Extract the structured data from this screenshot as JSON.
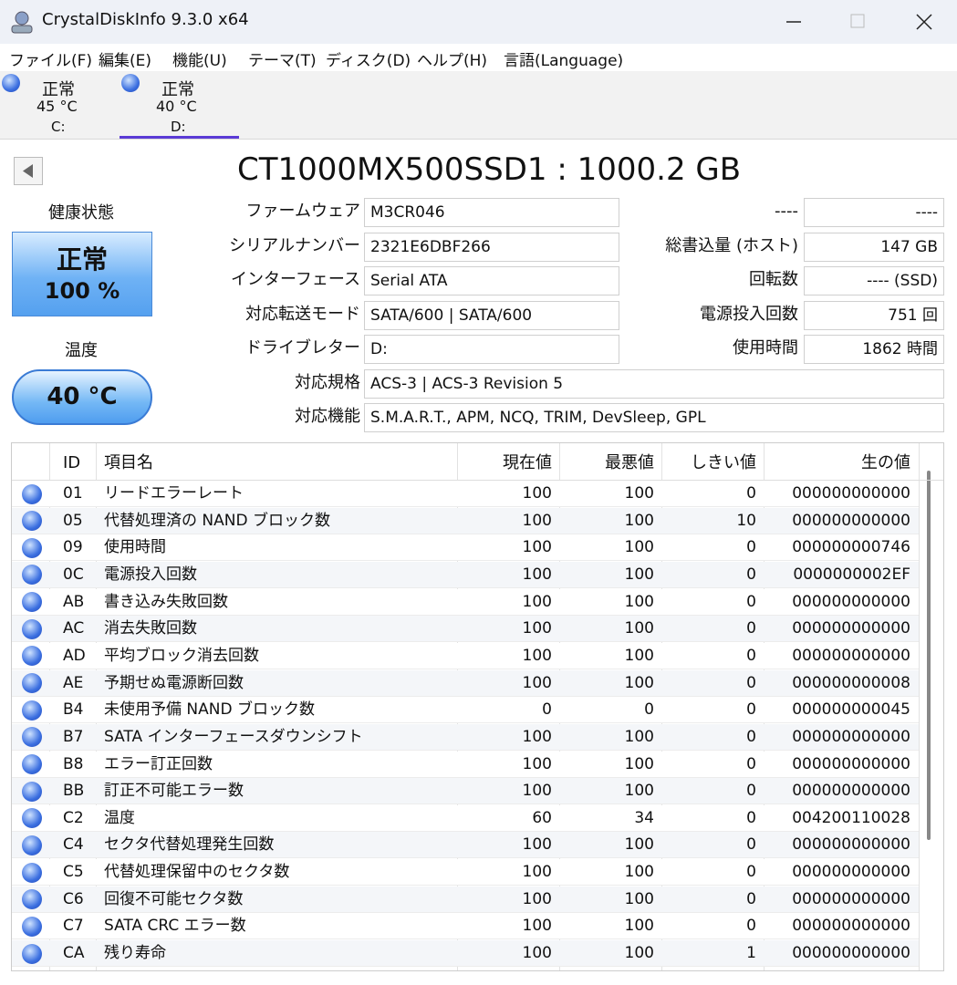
{
  "window": {
    "title": "CrystalDiskInfo 9.3.0 x64"
  },
  "menu": [
    "ファイル(F)",
    "編集(E)",
    "機能(U)",
    "テーマ(T)",
    "ディスク(D)",
    "ヘルプ(H)",
    "言語(Language)"
  ],
  "disks": [
    {
      "status": "正常",
      "temperature": "45 °C",
      "drive": "C:"
    },
    {
      "status": "正常",
      "temperature": "40 °C",
      "drive": "D:"
    }
  ],
  "model": "CT1000MX500SSD1 : 1000.2 GB",
  "health": {
    "label": "健康状態",
    "status": "正常",
    "percent": "100 %"
  },
  "temperature": {
    "label": "温度",
    "value": "40 °C"
  },
  "info_left": [
    {
      "label": "ファームウェア",
      "value": "M3CR046"
    },
    {
      "label": "シリアルナンバー",
      "value": "2321E6DBF266"
    },
    {
      "label": "インターフェース",
      "value": "Serial ATA"
    },
    {
      "label": "対応転送モード",
      "value": "SATA/600 | SATA/600"
    },
    {
      "label": "ドライブレター",
      "value": "D:"
    }
  ],
  "info_right": [
    {
      "label": "----",
      "value": "----"
    },
    {
      "label": "総書込量 (ホスト)",
      "value": "147 GB"
    },
    {
      "label": "回転数",
      "value": "---- (SSD)"
    },
    {
      "label": "電源投入回数",
      "value": "751 回"
    },
    {
      "label": "使用時間",
      "value": "1862 時間"
    }
  ],
  "info_wide": [
    {
      "label": "対応規格",
      "value": "ACS-3 | ACS-3 Revision 5"
    },
    {
      "label": "対応機能",
      "value": "S.M.A.R.T., APM, NCQ, TRIM, DevSleep, GPL"
    }
  ],
  "smart": {
    "columns": [
      "ID",
      "項目名",
      "現在値",
      "最悪値",
      "しきい値",
      "生の値"
    ],
    "rows": [
      [
        "01",
        "リードエラーレート",
        100,
        100,
        0,
        "000000000000"
      ],
      [
        "05",
        "代替処理済の NAND ブロック数",
        100,
        100,
        10,
        "000000000000"
      ],
      [
        "09",
        "使用時間",
        100,
        100,
        0,
        "000000000746"
      ],
      [
        "0C",
        "電源投入回数",
        100,
        100,
        0,
        "0000000002EF"
      ],
      [
        "AB",
        "書き込み失敗回数",
        100,
        100,
        0,
        "000000000000"
      ],
      [
        "AC",
        "消去失敗回数",
        100,
        100,
        0,
        "000000000000"
      ],
      [
        "AD",
        "平均ブロック消去回数",
        100,
        100,
        0,
        "000000000000"
      ],
      [
        "AE",
        "予期せぬ電源断回数",
        100,
        100,
        0,
        "000000000008"
      ],
      [
        "B4",
        "未使用予備 NAND ブロック数",
        0,
        0,
        0,
        "000000000045"
      ],
      [
        "B7",
        "SATA インターフェースダウンシフト",
        100,
        100,
        0,
        "000000000000"
      ],
      [
        "B8",
        "エラー訂正回数",
        100,
        100,
        0,
        "000000000000"
      ],
      [
        "BB",
        "訂正不可能エラー数",
        100,
        100,
        0,
        "000000000000"
      ],
      [
        "C2",
        "温度",
        60,
        34,
        0,
        "004200110028"
      ],
      [
        "C4",
        "セクタ代替処理発生回数",
        100,
        100,
        0,
        "000000000000"
      ],
      [
        "C5",
        "代替処理保留中のセクタ数",
        100,
        100,
        0,
        "000000000000"
      ],
      [
        "C6",
        "回復不可能セクタ数",
        100,
        100,
        0,
        "000000000000"
      ],
      [
        "C7",
        "SATA CRC エラー数",
        100,
        100,
        0,
        "000000000000"
      ],
      [
        "CA",
        "残り寿命",
        100,
        100,
        1,
        "000000000000"
      ]
    ]
  }
}
